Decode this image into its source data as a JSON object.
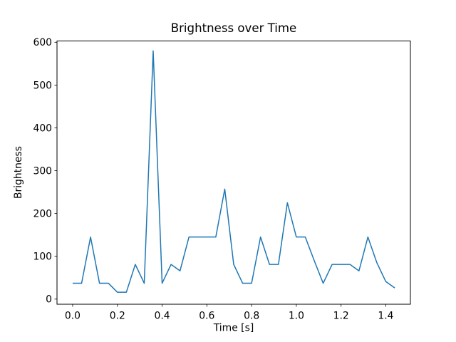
{
  "window": {
    "background": "#ffffff",
    "text_color": "#000000",
    "spine_color": "#000000"
  },
  "chart_data": {
    "type": "line",
    "title": "Brightness over Time",
    "xlabel": "Time [s]",
    "ylabel": "Brightness",
    "grid": false,
    "legend": null,
    "xlim": [
      -0.07,
      1.51
    ],
    "ylim": [
      -12,
      603
    ],
    "xticks": {
      "values": [
        0.0,
        0.2,
        0.4,
        0.6,
        0.8,
        1.0,
        1.2,
        1.4
      ],
      "labels": [
        "0.0",
        "0.2",
        "0.4",
        "0.6",
        "0.8",
        "1.0",
        "1.2",
        "1.4"
      ]
    },
    "yticks": {
      "values": [
        0,
        100,
        200,
        300,
        400,
        500,
        600
      ],
      "labels": [
        "0",
        "100",
        "200",
        "300",
        "400",
        "500",
        "600"
      ]
    },
    "series": [
      {
        "name": "brightness",
        "color": "#1f77b4",
        "line_width": 1.5,
        "x": [
          0.0,
          0.04,
          0.08,
          0.12,
          0.16,
          0.2,
          0.24,
          0.28,
          0.32,
          0.36,
          0.4,
          0.44,
          0.48,
          0.52,
          0.56,
          0.6,
          0.64,
          0.68,
          0.72,
          0.76,
          0.8,
          0.84,
          0.88,
          0.92,
          0.96,
          1.0,
          1.04,
          1.08,
          1.12,
          1.16,
          1.2,
          1.24,
          1.28,
          1.32,
          1.36,
          1.4,
          1.44
        ],
        "y": [
          37,
          37,
          145,
          37,
          37,
          16,
          16,
          81,
          37,
          580,
          37,
          81,
          66,
          145,
          145,
          145,
          145,
          257,
          81,
          37,
          37,
          145,
          81,
          81,
          225,
          145,
          145,
          90,
          37,
          81,
          81,
          81,
          66,
          145,
          85,
          41,
          26
        ]
      }
    ]
  }
}
